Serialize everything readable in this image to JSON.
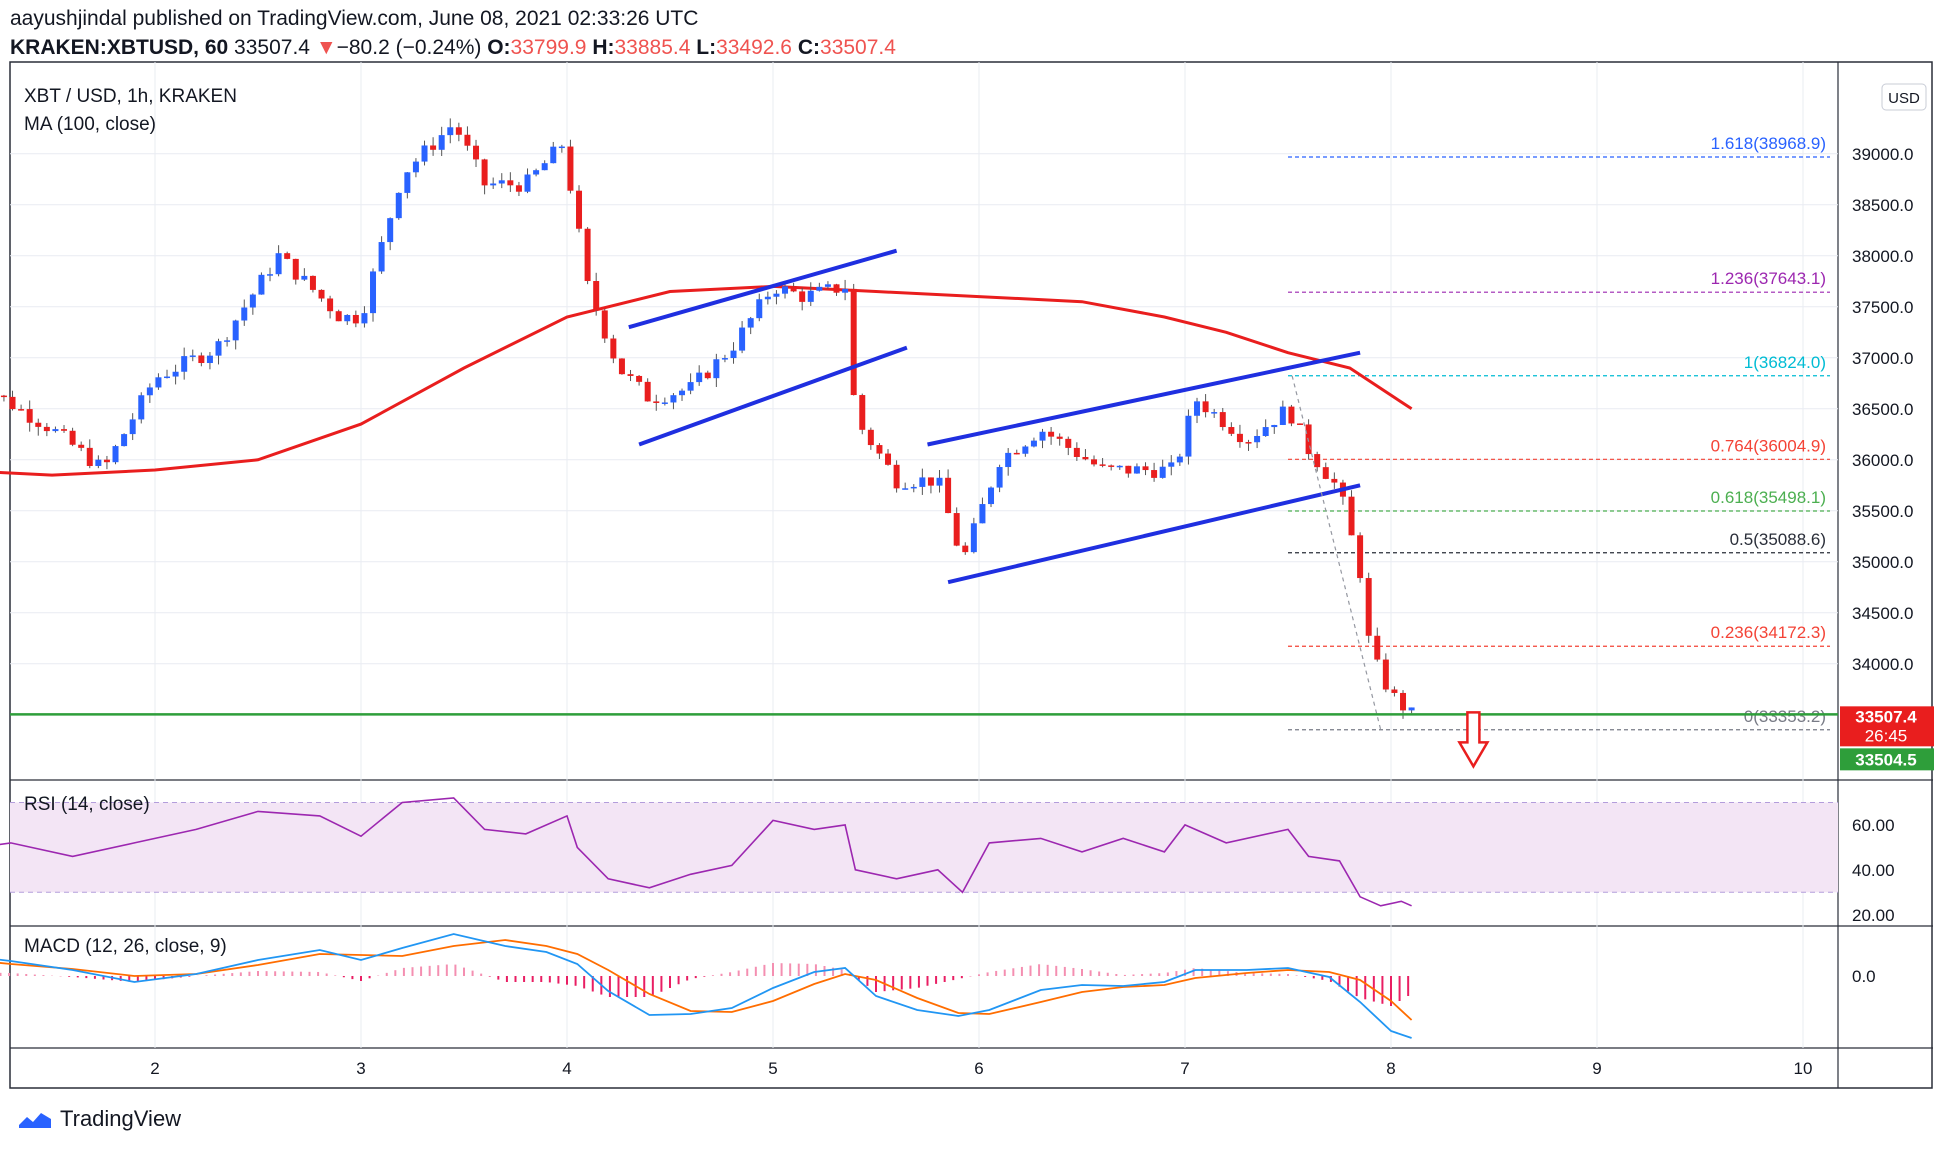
{
  "header": {
    "author": "aayushjindal",
    "published_text": "published on TradingView.com, June 08, 2021 02:33:26 UTC",
    "symbol": "KRAKEN:XBTUSD, 60",
    "last": "33507.4",
    "change_arrow": "▼",
    "change": "−80.2 (−0.24%)",
    "o_label": "O:",
    "o": "33799.9",
    "h_label": "H:",
    "h": "33885.4",
    "l_label": "L:",
    "l": "33492.6",
    "c_label": "C:",
    "c": "33507.4"
  },
  "chart_data": {
    "type": "candlestick",
    "title": "XBT / USD, 1h, KRAKEN",
    "currency_label": "USD",
    "x_ticks": [
      "2",
      "3",
      "4",
      "5",
      "6",
      "7",
      "8",
      "9",
      "10"
    ],
    "ylim": [
      32900,
      39900
    ],
    "y_ticks": [
      34000,
      34500,
      35000,
      35500,
      36000,
      36500,
      37000,
      37500,
      38000,
      38500,
      39000
    ],
    "y_tick_labels": [
      "34000.0",
      "34500.0",
      "35000.0",
      "35500.0",
      "36000.0",
      "36500.0",
      "37000.0",
      "37500.0",
      "38000.0",
      "38500.0",
      "39000.0"
    ],
    "price_path": [
      [
        1.1,
        36800
      ],
      [
        1.5,
        36300
      ],
      [
        1.75,
        35900
      ],
      [
        2.0,
        36800
      ],
      [
        2.3,
        37100
      ],
      [
        2.6,
        38000
      ],
      [
        2.9,
        37400
      ],
      [
        3.0,
        37400
      ],
      [
        3.2,
        38800
      ],
      [
        3.45,
        39300
      ],
      [
        3.6,
        38700
      ],
      [
        3.8,
        38700
      ],
      [
        3.98,
        39100
      ],
      [
        4.05,
        38300
      ],
      [
        4.1,
        37700
      ],
      [
        4.25,
        36900
      ],
      [
        4.4,
        36600
      ],
      [
        4.6,
        36700
      ],
      [
        4.8,
        37100
      ],
      [
        5.0,
        37700
      ],
      [
        5.15,
        37600
      ],
      [
        5.35,
        37700
      ],
      [
        5.4,
        36400
      ],
      [
        5.6,
        35800
      ],
      [
        5.8,
        35800
      ],
      [
        5.92,
        35000
      ],
      [
        6.1,
        36000
      ],
      [
        6.3,
        36300
      ],
      [
        6.6,
        35900
      ],
      [
        6.8,
        35900
      ],
      [
        6.95,
        35900
      ],
      [
        7.05,
        36600
      ],
      [
        7.3,
        36200
      ],
      [
        7.5,
        36500
      ],
      [
        7.6,
        36100
      ],
      [
        7.75,
        35700
      ],
      [
        7.85,
        34900
      ],
      [
        7.9,
        34100
      ],
      [
        8.0,
        33700
      ],
      [
        8.1,
        33500
      ]
    ],
    "moving_average": {
      "label": "MA (100, close)",
      "points": [
        [
          1.0,
          35900
        ],
        [
          1.5,
          35850
        ],
        [
          2.0,
          35900
        ],
        [
          2.5,
          36000
        ],
        [
          3.0,
          36350
        ],
        [
          3.5,
          36900
        ],
        [
          4.0,
          37400
        ],
        [
          4.5,
          37650
        ],
        [
          5.0,
          37700
        ],
        [
          5.5,
          37650
        ],
        [
          6.0,
          37600
        ],
        [
          6.5,
          37550
        ],
        [
          6.9,
          37400
        ],
        [
          7.2,
          37250
        ],
        [
          7.5,
          37050
        ],
        [
          7.8,
          36900
        ],
        [
          8.1,
          36500
        ]
      ]
    },
    "channels": [
      {
        "from": [
          4.3,
          37300
        ],
        "to": [
          5.6,
          38050
        ]
      },
      {
        "from": [
          4.35,
          36150
        ],
        "to": [
          5.65,
          37100
        ]
      },
      {
        "from": [
          5.75,
          36150
        ],
        "to": [
          7.85,
          37050
        ]
      },
      {
        "from": [
          5.85,
          34800
        ],
        "to": [
          7.85,
          35750
        ]
      }
    ],
    "support_level": 33504.5,
    "fibonacci": [
      {
        "ratio": "1.618",
        "value": "38968.9",
        "price": 38968.9,
        "color": "#2962ff"
      },
      {
        "ratio": "1.236",
        "value": "37643.1",
        "price": 37643.1,
        "color": "#9c27b0"
      },
      {
        "ratio": "1",
        "value": "36824.0",
        "price": 36824.0,
        "color": "#00bcd4"
      },
      {
        "ratio": "0.764",
        "value": "36004.9",
        "price": 36004.9,
        "color": "#f44336"
      },
      {
        "ratio": "0.618",
        "value": "35498.1",
        "price": 35498.1,
        "color": "#4caf50"
      },
      {
        "ratio": "0.5",
        "value": "35088.6",
        "price": 35088.6,
        "color": "#2a2e39"
      },
      {
        "ratio": "0.236",
        "value": "34172.3",
        "price": 34172.3,
        "color": "#f44336"
      },
      {
        "ratio": "0",
        "value": "33353.2",
        "price": 33353.2,
        "color": "#787b86"
      }
    ],
    "price_tags": {
      "last": "33507.4",
      "countdown": "26:45",
      "support": "33504.5"
    },
    "rsi": {
      "label": "RSI (14, close)",
      "y_ticks": [
        "60.00",
        "40.00",
        "20.00"
      ],
      "band": [
        30,
        70
      ],
      "ylim": [
        15,
        80
      ],
      "points": [
        [
          1.0,
          48
        ],
        [
          1.3,
          52
        ],
        [
          1.6,
          46
        ],
        [
          1.9,
          52
        ],
        [
          2.2,
          58
        ],
        [
          2.5,
          66
        ],
        [
          2.8,
          64
        ],
        [
          3.0,
          55
        ],
        [
          3.2,
          70
        ],
        [
          3.45,
          72
        ],
        [
          3.6,
          58
        ],
        [
          3.8,
          56
        ],
        [
          4.0,
          64
        ],
        [
          4.05,
          50
        ],
        [
          4.2,
          36
        ],
        [
          4.4,
          32
        ],
        [
          4.6,
          38
        ],
        [
          4.8,
          42
        ],
        [
          5.0,
          62
        ],
        [
          5.2,
          58
        ],
        [
          5.35,
          60
        ],
        [
          5.4,
          40
        ],
        [
          5.6,
          36
        ],
        [
          5.8,
          40
        ],
        [
          5.92,
          30
        ],
        [
          6.05,
          52
        ],
        [
          6.3,
          54
        ],
        [
          6.5,
          48
        ],
        [
          6.7,
          54
        ],
        [
          6.9,
          48
        ],
        [
          7.0,
          60
        ],
        [
          7.2,
          52
        ],
        [
          7.5,
          58
        ],
        [
          7.6,
          46
        ],
        [
          7.75,
          44
        ],
        [
          7.85,
          28
        ],
        [
          7.95,
          24
        ],
        [
          8.05,
          26
        ],
        [
          8.1,
          24
        ]
      ]
    },
    "macd": {
      "label": "MACD (12, 26, close, 9)",
      "y_tick": "0.0",
      "ylim": [
        -700,
        500
      ],
      "macd_points": [
        [
          1.0,
          220
        ],
        [
          1.3,
          150
        ],
        [
          1.6,
          60
        ],
        [
          1.9,
          -60
        ],
        [
          2.2,
          20
        ],
        [
          2.5,
          160
        ],
        [
          2.8,
          260
        ],
        [
          3.0,
          160
        ],
        [
          3.2,
          280
        ],
        [
          3.45,
          420
        ],
        [
          3.7,
          300
        ],
        [
          3.9,
          240
        ],
        [
          4.05,
          120
        ],
        [
          4.2,
          -150
        ],
        [
          4.4,
          -390
        ],
        [
          4.6,
          -380
        ],
        [
          4.8,
          -320
        ],
        [
          5.0,
          -120
        ],
        [
          5.2,
          40
        ],
        [
          5.35,
          80
        ],
        [
          5.5,
          -200
        ],
        [
          5.7,
          -340
        ],
        [
          5.9,
          -400
        ],
        [
          6.05,
          -340
        ],
        [
          6.3,
          -140
        ],
        [
          6.5,
          -90
        ],
        [
          6.7,
          -100
        ],
        [
          6.9,
          -60
        ],
        [
          7.05,
          60
        ],
        [
          7.3,
          60
        ],
        [
          7.5,
          80
        ],
        [
          7.7,
          -10
        ],
        [
          7.85,
          -260
        ],
        [
          8.0,
          -550
        ],
        [
          8.1,
          -620
        ]
      ],
      "signal_points": [
        [
          1.0,
          180
        ],
        [
          1.3,
          120
        ],
        [
          1.6,
          70
        ],
        [
          1.9,
          0
        ],
        [
          2.2,
          20
        ],
        [
          2.5,
          110
        ],
        [
          2.8,
          220
        ],
        [
          3.0,
          210
        ],
        [
          3.2,
          200
        ],
        [
          3.45,
          300
        ],
        [
          3.7,
          360
        ],
        [
          3.9,
          300
        ],
        [
          4.05,
          220
        ],
        [
          4.2,
          60
        ],
        [
          4.4,
          -180
        ],
        [
          4.6,
          -350
        ],
        [
          4.8,
          -360
        ],
        [
          5.0,
          -250
        ],
        [
          5.2,
          -80
        ],
        [
          5.35,
          20
        ],
        [
          5.5,
          -40
        ],
        [
          5.7,
          -220
        ],
        [
          5.9,
          -370
        ],
        [
          6.05,
          -380
        ],
        [
          6.3,
          -260
        ],
        [
          6.5,
          -160
        ],
        [
          6.7,
          -110
        ],
        [
          6.9,
          -90
        ],
        [
          7.05,
          -20
        ],
        [
          7.3,
          30
        ],
        [
          7.5,
          60
        ],
        [
          7.7,
          40
        ],
        [
          7.85,
          -40
        ],
        [
          8.0,
          -250
        ],
        [
          8.1,
          -440
        ]
      ]
    }
  },
  "footer": {
    "brand": "TradingView"
  }
}
